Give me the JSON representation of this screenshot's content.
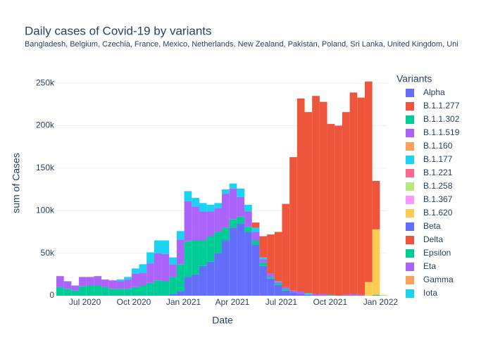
{
  "chart_data": {
    "type": "stacked_bar",
    "title": "Daily cases of Covid-19 by variants",
    "subtitle": "Bangladesh, Belgium, Czechia, France, Mexico, Netherlands, New Zealand, Pakistan, Poland, Sri Lanka, United Kingdom, Uni",
    "x_label": "Date",
    "y_label": "sum of Cases",
    "legend_title": "Variants",
    "categories": [
      null,
      null,
      null,
      null,
      null,
      null,
      null,
      null,
      null,
      null,
      null,
      null,
      null,
      null,
      null,
      null,
      null,
      null,
      null,
      null,
      null,
      null,
      null,
      null,
      null,
      null,
      null,
      null,
      null,
      null,
      null,
      null,
      null,
      null,
      null,
      null,
      null,
      null,
      null,
      null,
      null,
      null,
      null,
      null
    ],
    "xlim": [
      0,
      44
    ],
    "xticks": [
      {
        "value": 3.8,
        "label": "Jul 2020"
      },
      {
        "value": 10.3,
        "label": "Oct 2020"
      },
      {
        "value": 16.9,
        "label": "Jan 2021"
      },
      {
        "value": 23.4,
        "label": "Apr 2021"
      },
      {
        "value": 29.9,
        "label": "Jul 2021"
      },
      {
        "value": 36.4,
        "label": "Oct 2021"
      },
      {
        "value": 43.1,
        "label": "Jan 2022"
      }
    ],
    "ylim": [
      0,
      265000
    ],
    "yticks": [
      0,
      {
        "value": 50000,
        "label": "50k"
      },
      {
        "value": 100000,
        "label": "100k"
      },
      {
        "value": 150000,
        "label": "150k"
      },
      {
        "value": 200000,
        "label": "200k"
      },
      {
        "value": 250000,
        "label": "250k"
      }
    ],
    "grid": true,
    "series": [
      {
        "name": "Alpha",
        "color": "#636efa",
        "values": [
          0,
          0,
          0,
          0,
          0,
          0,
          0,
          0,
          0,
          0,
          0,
          0,
          0,
          0,
          0,
          2000,
          5000,
          22000,
          25000,
          35000,
          40000,
          50000,
          65000,
          80000,
          85000,
          75000,
          60000,
          35000,
          20000,
          12000,
          6000,
          4000,
          2000,
          1000,
          0,
          0,
          0,
          0,
          0,
          0,
          0,
          0,
          0,
          0
        ]
      },
      {
        "name": "B.1.1.277",
        "color": "#EF553B",
        "values": [
          0,
          0,
          0,
          0,
          0,
          0,
          0,
          0,
          0,
          0,
          0,
          0,
          0,
          0,
          0,
          0,
          0,
          0,
          0,
          0,
          0,
          0,
          0,
          0,
          0,
          0,
          0,
          0,
          0,
          0,
          0,
          0,
          0,
          0,
          0,
          0,
          0,
          0,
          0,
          0,
          0,
          0,
          0,
          0
        ]
      },
      {
        "name": "B.1.1.302",
        "color": "#00cc96",
        "values": [
          10000,
          8000,
          6000,
          11000,
          12000,
          12000,
          10000,
          8000,
          8000,
          8000,
          10000,
          12000,
          15000,
          18000,
          17000,
          20000,
          32000,
          42000,
          40000,
          30000,
          30000,
          25000,
          15000,
          10000,
          8000,
          6000,
          5000,
          4000,
          2000,
          2000,
          2000,
          0,
          0,
          0,
          0,
          0,
          1000,
          0,
          0,
          0,
          0,
          0,
          1000,
          0
        ]
      },
      {
        "name": "B.1.1.519",
        "color": "#ab63fa",
        "values": [
          13000,
          9000,
          6000,
          11000,
          10000,
          11000,
          9000,
          10000,
          9000,
          11000,
          16000,
          15000,
          23000,
          32000,
          32000,
          15000,
          29000,
          47000,
          40000,
          34000,
          29000,
          28000,
          40000,
          36000,
          23000,
          18000,
          10000,
          4000,
          4000,
          2000,
          2000,
          2000,
          3000,
          0,
          2000,
          2000,
          0,
          0,
          1000,
          2000,
          1000,
          0,
          0,
          0
        ]
      },
      {
        "name": "B.1.160",
        "color": "#FFA15A",
        "values": [
          0,
          0,
          0,
          0,
          0,
          0,
          0,
          0,
          0,
          0,
          0,
          0,
          0,
          0,
          0,
          0,
          0,
          0,
          0,
          0,
          0,
          0,
          0,
          0,
          0,
          0,
          0,
          0,
          0,
          0,
          0,
          0,
          0,
          0,
          0,
          0,
          0,
          0,
          0,
          0,
          0,
          0,
          0,
          0
        ]
      },
      {
        "name": "B.1.177",
        "color": "#19d3f3",
        "values": [
          0,
          0,
          0,
          0,
          0,
          0,
          0,
          0,
          2000,
          3000,
          6000,
          10000,
          13000,
          15000,
          16000,
          8000,
          10000,
          12000,
          10000,
          10000,
          8000,
          6000,
          5000,
          6000,
          10000,
          8000,
          5000,
          2000,
          0,
          1000,
          0,
          0,
          0,
          2000,
          0,
          0,
          0,
          0,
          0,
          0,
          0,
          0,
          0,
          0
        ]
      },
      {
        "name": "B.1.221",
        "color": "#FF6692",
        "values": [
          0,
          0,
          0,
          0,
          0,
          0,
          0,
          0,
          0,
          0,
          0,
          0,
          0,
          0,
          0,
          0,
          0,
          0,
          0,
          0,
          0,
          0,
          0,
          0,
          0,
          0,
          0,
          0,
          0,
          0,
          0,
          0,
          0,
          0,
          0,
          0,
          0,
          0,
          0,
          0,
          0,
          0,
          0,
          0
        ]
      },
      {
        "name": "B.1.258",
        "color": "#B6E880",
        "values": [
          0,
          0,
          0,
          0,
          0,
          0,
          0,
          0,
          0,
          0,
          0,
          0,
          0,
          0,
          0,
          0,
          0,
          0,
          0,
          0,
          0,
          0,
          0,
          0,
          0,
          0,
          0,
          0,
          0,
          0,
          0,
          0,
          0,
          0,
          0,
          0,
          0,
          0,
          0,
          0,
          0,
          0,
          0,
          0
        ]
      },
      {
        "name": "B.1.367",
        "color": "#FF97FF",
        "values": [
          0,
          0,
          0,
          0,
          0,
          0,
          0,
          0,
          0,
          0,
          0,
          0,
          0,
          0,
          0,
          0,
          0,
          0,
          0,
          0,
          0,
          0,
          0,
          0,
          0,
          0,
          0,
          0,
          0,
          0,
          0,
          0,
          0,
          0,
          0,
          0,
          0,
          0,
          0,
          0,
          0,
          0,
          0,
          0
        ]
      },
      {
        "name": "B.1.620",
        "color": "#FECB52",
        "values": [
          0,
          0,
          0,
          0,
          0,
          0,
          0,
          0,
          0,
          0,
          0,
          0,
          0,
          0,
          0,
          0,
          0,
          0,
          0,
          0,
          0,
          0,
          0,
          0,
          0,
          0,
          0,
          0,
          0,
          0,
          0,
          0,
          0,
          0,
          0,
          0,
          0,
          0,
          0,
          0,
          0,
          16000,
          77000,
          1000
        ]
      },
      {
        "name": "Beta",
        "color": "#636efa",
        "values": [
          0,
          0,
          0,
          0,
          0,
          0,
          0,
          0,
          0,
          0,
          0,
          0,
          0,
          0,
          0,
          0,
          0,
          0,
          0,
          0,
          0,
          0,
          0,
          0,
          0,
          0,
          0,
          0,
          0,
          0,
          0,
          0,
          0,
          0,
          0,
          0,
          0,
          0,
          0,
          0,
          0,
          0,
          0,
          0
        ]
      },
      {
        "name": "Delta",
        "color": "#EF553B",
        "values": [
          0,
          0,
          0,
          0,
          0,
          0,
          0,
          0,
          0,
          0,
          0,
          0,
          0,
          0,
          0,
          0,
          0,
          0,
          0,
          0,
          0,
          0,
          0,
          0,
          0,
          0,
          6000,
          25000,
          46000,
          58000,
          98000,
          157000,
          227000,
          213000,
          233000,
          226000,
          201000,
          200000,
          215000,
          237000,
          232000,
          236000,
          57000,
          0
        ]
      },
      {
        "name": "Epsilon",
        "color": "#00cc96",
        "values": [
          0,
          0,
          0,
          0,
          0,
          0,
          0,
          0,
          0,
          0,
          0,
          0,
          0,
          0,
          0,
          0,
          0,
          0,
          0,
          0,
          0,
          0,
          0,
          0,
          0,
          0,
          0,
          0,
          0,
          0,
          0,
          0,
          0,
          0,
          0,
          0,
          0,
          0,
          0,
          0,
          0,
          0,
          0,
          0
        ]
      },
      {
        "name": "Eta",
        "color": "#ab63fa",
        "values": [
          0,
          0,
          0,
          0,
          0,
          0,
          0,
          0,
          0,
          0,
          0,
          0,
          0,
          0,
          0,
          0,
          0,
          0,
          0,
          0,
          0,
          0,
          0,
          0,
          0,
          0,
          0,
          0,
          0,
          0,
          0,
          0,
          0,
          0,
          0,
          0,
          0,
          0,
          0,
          0,
          0,
          0,
          0,
          0
        ]
      },
      {
        "name": "Gamma",
        "color": "#FFA15A",
        "values": [
          0,
          0,
          0,
          0,
          0,
          0,
          0,
          0,
          0,
          0,
          0,
          0,
          0,
          0,
          0,
          0,
          0,
          0,
          0,
          0,
          0,
          0,
          0,
          0,
          0,
          0,
          0,
          0,
          0,
          0,
          0,
          0,
          0,
          0,
          0,
          0,
          0,
          0,
          0,
          0,
          0,
          0,
          0,
          0
        ]
      },
      {
        "name": "Iota",
        "color": "#19d3f3",
        "values": [
          0,
          0,
          0,
          0,
          0,
          0,
          0,
          0,
          0,
          0,
          0,
          0,
          0,
          0,
          0,
          0,
          0,
          0,
          0,
          0,
          0,
          0,
          0,
          0,
          0,
          0,
          0,
          0,
          0,
          0,
          0,
          0,
          0,
          0,
          0,
          0,
          0,
          0,
          0,
          0,
          0,
          0,
          0,
          0
        ]
      }
    ]
  }
}
